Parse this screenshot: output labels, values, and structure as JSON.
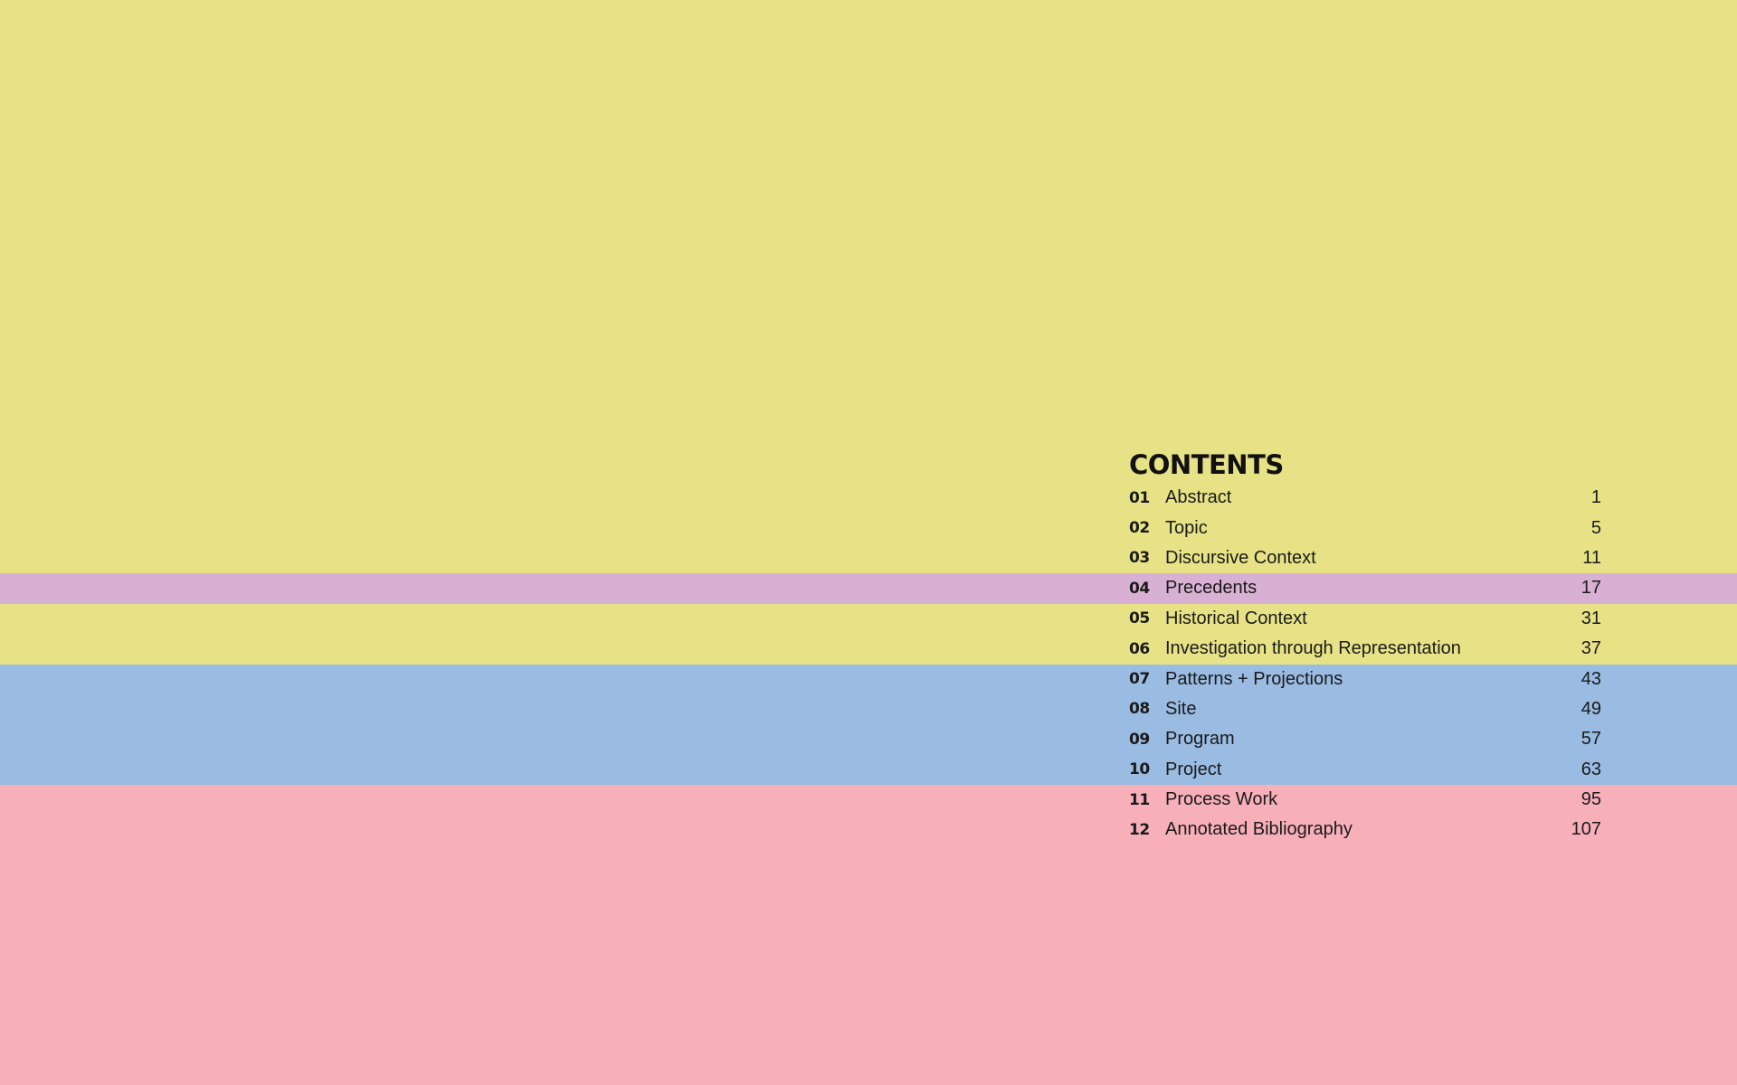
{
  "colors": {
    "yellow": "#e7e286",
    "purple": "#d7b0d3",
    "blue": "#9abbe2",
    "pink": "#f7afba",
    "text": "#1a1a1a"
  },
  "contents": {
    "title": "CONTENTS",
    "items": [
      {
        "num": "01",
        "label": "Abstract",
        "page": "1"
      },
      {
        "num": "02",
        "label": "Topic",
        "page": "5"
      },
      {
        "num": "03",
        "label": "Discursive Context",
        "page": "11"
      },
      {
        "num": "04",
        "label": "Precedents",
        "page": "17"
      },
      {
        "num": "05",
        "label": "Historical Context",
        "page": "31"
      },
      {
        "num": "06",
        "label": "Investigation through Representation",
        "page": "37"
      },
      {
        "num": "07",
        "label": "Patterns + Projections",
        "page": "43"
      },
      {
        "num": "08",
        "label": "Site",
        "page": "49"
      },
      {
        "num": "09",
        "label": "Program",
        "page": "57"
      },
      {
        "num": "10",
        "label": "Project",
        "page": "63"
      },
      {
        "num": "11",
        "label": "Process Work",
        "page": "95"
      },
      {
        "num": "12",
        "label": "Annotated Bibliography",
        "page": "107"
      }
    ]
  }
}
